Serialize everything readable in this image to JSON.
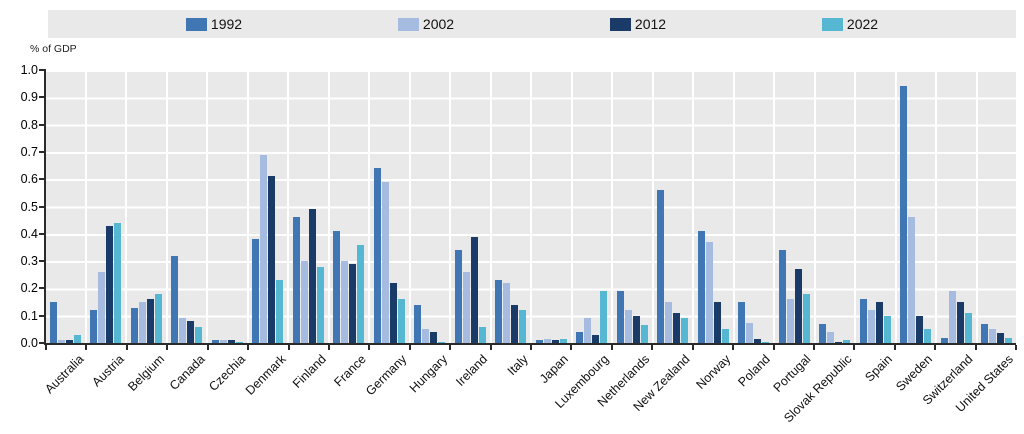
{
  "chart_data": {
    "type": "bar",
    "title": "",
    "ylabel": "% of GDP",
    "xlabel": "",
    "ylim": [
      0,
      1.0
    ],
    "ytick_step": 0.1,
    "grid": true,
    "legend_position": "top",
    "plot_bg": "#e9e9e9",
    "gridline_color": "#ffffff",
    "axis_color": "#2b2b2b",
    "yticks": [
      "1.0",
      "0.9",
      "0.8",
      "0.7",
      "0.6",
      "0.5",
      "0.4",
      "0.3",
      "0.2",
      "0.1",
      "0.0"
    ],
    "categories": [
      "Australia",
      "Austria",
      "Belgium",
      "Canada",
      "Czechia",
      "Denmark",
      "Finland",
      "France",
      "Germany",
      "Hungary",
      "Ireland",
      "Italy",
      "Japan",
      "Luxembourg",
      "Netherlands",
      "New Zealand",
      "Norway",
      "Poland",
      "Portugal",
      "Slovak Republic",
      "Spain",
      "Sweden",
      "Switzerland",
      "United States"
    ],
    "series": [
      {
        "name": "1992",
        "color": "#4076b4",
        "values": [
          0.15,
          0.12,
          0.13,
          0.32,
          0.01,
          0.38,
          0.46,
          0.41,
          0.64,
          0.14,
          0.34,
          0.23,
          0.01,
          0.04,
          0.19,
          0.56,
          0.41,
          0.15,
          0.34,
          0.07,
          0.16,
          0.94,
          0.02,
          0.07
        ]
      },
      {
        "name": "2002",
        "color": "#a5bce0",
        "values": [
          0.01,
          0.26,
          0.15,
          0.09,
          0.01,
          0.69,
          0.3,
          0.3,
          0.59,
          0.05,
          0.26,
          0.22,
          0.015,
          0.09,
          0.12,
          0.15,
          0.37,
          0.075,
          0.16,
          0.04,
          0.12,
          0.46,
          0.19,
          0.05
        ]
      },
      {
        "name": "2012",
        "color": "#1a3a68",
        "values": [
          0.01,
          0.43,
          0.16,
          0.08,
          0.01,
          0.61,
          0.49,
          0.29,
          0.22,
          0.04,
          0.39,
          0.14,
          0.01,
          0.03,
          0.1,
          0.11,
          0.15,
          0.015,
          0.27,
          0.005,
          0.15,
          0.1,
          0.15,
          0.035
        ]
      },
      {
        "name": "2022",
        "color": "#56b7d3",
        "values": [
          0.03,
          0.44,
          0.18,
          0.06,
          0.005,
          0.23,
          0.28,
          0.36,
          0.16,
          0.005,
          0.06,
          0.12,
          0.015,
          0.19,
          0.065,
          0.09,
          0.05,
          0.005,
          0.18,
          0.01,
          0.1,
          0.05,
          0.11,
          0.02
        ]
      }
    ]
  }
}
